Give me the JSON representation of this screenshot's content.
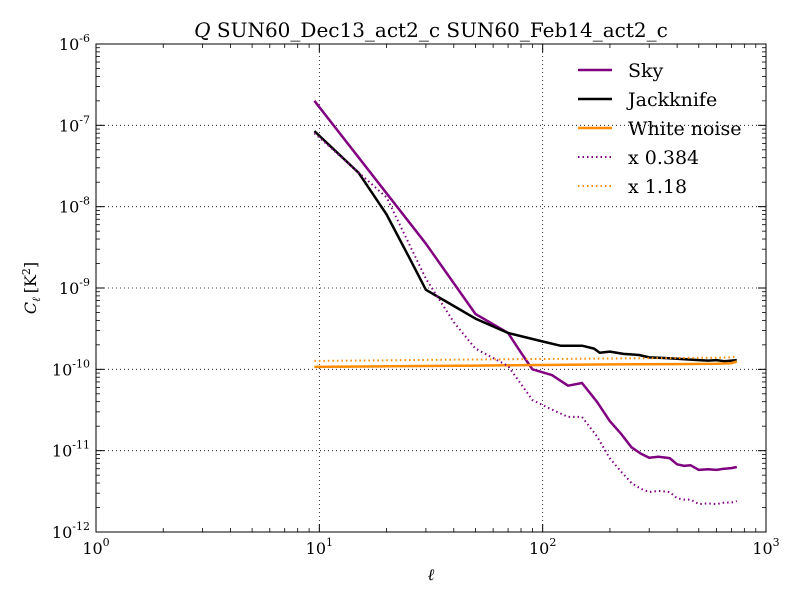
{
  "chart_data": {
    "type": "line",
    "title_parts": {
      "stokes": "Q",
      "rest": " SUN60_Dec13_act2_c SUN60_Feb14_act2_c"
    },
    "xlabel": "ℓ",
    "ylabel": {
      "symbol": "C",
      "sub": "ℓ",
      "unit_pre": "[K",
      "unit_sup": "2",
      "unit_post": "]"
    },
    "xscale": "log",
    "yscale": "log",
    "xlim": [
      1,
      1000
    ],
    "ylim": [
      1e-12,
      1e-06
    ],
    "x_ticks": [
      {
        "value": 1,
        "base": "10",
        "exp": "0"
      },
      {
        "value": 10,
        "base": "10",
        "exp": "1"
      },
      {
        "value": 100,
        "base": "10",
        "exp": "2"
      },
      {
        "value": 1000,
        "base": "10",
        "exp": "3"
      }
    ],
    "y_ticks": [
      {
        "value": 1e-12,
        "base": "10",
        "exp": "-12"
      },
      {
        "value": 1e-11,
        "base": "10",
        "exp": "-11"
      },
      {
        "value": 1e-10,
        "base": "10",
        "exp": "-10"
      },
      {
        "value": 1e-09,
        "base": "10",
        "exp": "-9"
      },
      {
        "value": 1e-08,
        "base": "10",
        "exp": "-8"
      },
      {
        "value": 1e-07,
        "base": "10",
        "exp": "-7"
      },
      {
        "value": 1e-06,
        "base": "10",
        "exp": "-6"
      }
    ],
    "grid": true,
    "legend_position": "top-right",
    "series": [
      {
        "name": "Sky",
        "color": "#800080",
        "style": "solid",
        "points": [
          [
            9.5,
            2e-07
          ],
          [
            30,
            3.5e-09
          ],
          [
            50,
            4.8e-10
          ],
          [
            70,
            2.8e-10
          ],
          [
            80,
            1.6e-10
          ],
          [
            90,
            1e-10
          ],
          [
            110,
            8.5e-11
          ],
          [
            130,
            6.3e-11
          ],
          [
            150,
            6.8e-11
          ],
          [
            175,
            4e-11
          ],
          [
            200,
            2.3e-11
          ],
          [
            225,
            1.6e-11
          ],
          [
            250,
            1.1e-11
          ],
          [
            275,
            9.2e-12
          ],
          [
            300,
            8.2e-12
          ],
          [
            330,
            8.4e-12
          ],
          [
            370,
            8.1e-12
          ],
          [
            400,
            6.8e-12
          ],
          [
            430,
            6.5e-12
          ],
          [
            460,
            6.6e-12
          ],
          [
            500,
            5.8e-12
          ],
          [
            550,
            5.9e-12
          ],
          [
            600,
            5.8e-12
          ],
          [
            650,
            6e-12
          ],
          [
            700,
            6.1e-12
          ],
          [
            740,
            6.3e-12
          ]
        ]
      },
      {
        "name": "Jackknife",
        "color": "#000000",
        "style": "solid",
        "points": [
          [
            9.5,
            8.5e-08
          ],
          [
            15,
            2.6e-08
          ],
          [
            20,
            8e-09
          ],
          [
            25,
            2.5e-09
          ],
          [
            30,
            9.5e-10
          ],
          [
            40,
            6e-10
          ],
          [
            50,
            4.2e-10
          ],
          [
            70,
            2.8e-10
          ],
          [
            100,
            2.2e-10
          ],
          [
            120,
            1.95e-10
          ],
          [
            150,
            1.95e-10
          ],
          [
            170,
            1.8e-10
          ],
          [
            180,
            1.6e-10
          ],
          [
            200,
            1.65e-10
          ],
          [
            230,
            1.55e-10
          ],
          [
            270,
            1.5e-10
          ],
          [
            300,
            1.4e-10
          ],
          [
            350,
            1.38e-10
          ],
          [
            400,
            1.35e-10
          ],
          [
            450,
            1.32e-10
          ],
          [
            500,
            1.3e-10
          ],
          [
            550,
            1.28e-10
          ],
          [
            600,
            1.3e-10
          ],
          [
            650,
            1.26e-10
          ],
          [
            700,
            1.28e-10
          ],
          [
            740,
            1.3e-10
          ]
        ]
      },
      {
        "name": "White noise",
        "color": "#FF8C00",
        "style": "solid",
        "points": [
          [
            9.5,
            1.07e-10
          ],
          [
            20,
            1.09e-10
          ],
          [
            50,
            1.11e-10
          ],
          [
            100,
            1.13e-10
          ],
          [
            200,
            1.15e-10
          ],
          [
            400,
            1.16e-10
          ],
          [
            600,
            1.17e-10
          ],
          [
            700,
            1.19e-10
          ],
          [
            740,
            1.25e-10
          ]
        ]
      },
      {
        "name": "x 0.384",
        "color": "#800080",
        "style": "dotted",
        "points": [
          [
            9.5,
            8e-08
          ],
          [
            20,
            1.3e-08
          ],
          [
            30,
            1.3e-09
          ],
          [
            40,
            3.8e-10
          ],
          [
            50,
            1.8e-10
          ],
          [
            70,
            1.1e-10
          ],
          [
            90,
            4.2e-11
          ],
          [
            110,
            3.2e-11
          ],
          [
            130,
            2.6e-11
          ],
          [
            150,
            2.6e-11
          ],
          [
            175,
            1.5e-11
          ],
          [
            200,
            8e-12
          ],
          [
            225,
            5.5e-12
          ],
          [
            250,
            4e-12
          ],
          [
            275,
            3.4e-12
          ],
          [
            300,
            3.1e-12
          ],
          [
            330,
            3.2e-12
          ],
          [
            370,
            3.1e-12
          ],
          [
            400,
            2.6e-12
          ],
          [
            430,
            2.5e-12
          ],
          [
            460,
            2.5e-12
          ],
          [
            500,
            2.2e-12
          ],
          [
            550,
            2.25e-12
          ],
          [
            600,
            2.2e-12
          ],
          [
            650,
            2.3e-12
          ],
          [
            700,
            2.3e-12
          ],
          [
            740,
            2.4e-12
          ]
        ]
      },
      {
        "name": "x 1.18",
        "color": "#FF8C00",
        "style": "dotted",
        "points": [
          [
            9.5,
            1.27e-10
          ],
          [
            20,
            1.29e-10
          ],
          [
            50,
            1.32e-10
          ],
          [
            100,
            1.34e-10
          ],
          [
            200,
            1.36e-10
          ],
          [
            400,
            1.38e-10
          ],
          [
            600,
            1.39e-10
          ],
          [
            700,
            1.4e-10
          ],
          [
            740,
            1.45e-10
          ]
        ]
      }
    ]
  }
}
